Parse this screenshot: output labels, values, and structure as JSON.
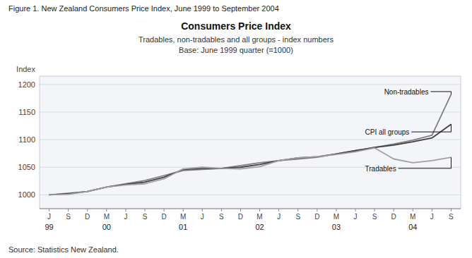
{
  "chart_data": {
    "type": "line",
    "figure_title": "Figure 1. New Zealand Consumers Price Index, June 1999 to September 2004",
    "title": "Consumers Price Index",
    "subtitle": [
      "Tradables, non-tradables and all groups - index numbers",
      "Base: June 1999 quarter (=1000)"
    ],
    "ylabel": "Index",
    "source": "Source: Statistics New Zealand.",
    "categories": [
      "J",
      "S",
      "D",
      "M",
      "J",
      "S",
      "D",
      "M",
      "J",
      "S",
      "D",
      "M",
      "J",
      "S",
      "D",
      "M",
      "J",
      "S",
      "D",
      "M",
      "J",
      "S"
    ],
    "year_labels": [
      {
        "position": 0,
        "label": "99"
      },
      {
        "position": 3,
        "label": "00"
      },
      {
        "position": 7,
        "label": "01"
      },
      {
        "position": 11,
        "label": "02"
      },
      {
        "position": 15,
        "label": "03"
      },
      {
        "position": 19,
        "label": "04"
      }
    ],
    "series": [
      {
        "name": "Non-tradables",
        "color": "#7f7f7f",
        "values": [
          1000,
          1003,
          1006,
          1014,
          1020,
          1026,
          1035,
          1044,
          1046,
          1048,
          1053,
          1058,
          1062,
          1065,
          1068,
          1074,
          1080,
          1086,
          1092,
          1099,
          1108,
          1182
        ]
      },
      {
        "name": "CPI all groups",
        "color": "#404040",
        "values": [
          1000,
          1002,
          1006,
          1014,
          1019,
          1023,
          1032,
          1046,
          1048,
          1048,
          1050,
          1055,
          1062,
          1067,
          1069,
          1074,
          1080,
          1086,
          1090,
          1096,
          1103,
          1128
        ]
      },
      {
        "name": "Tradables",
        "color": "#a0a0a0",
        "values": [
          1000,
          1001,
          1006,
          1014,
          1018,
          1020,
          1029,
          1047,
          1050,
          1048,
          1047,
          1051,
          1062,
          1067,
          1069,
          1073,
          1078,
          1085,
          1065,
          1058,
          1062,
          1068
        ]
      }
    ],
    "ylim": [
      975,
      1215
    ],
    "yticks": [
      1000,
      1050,
      1100,
      1150,
      1200
    ],
    "grid": true
  }
}
